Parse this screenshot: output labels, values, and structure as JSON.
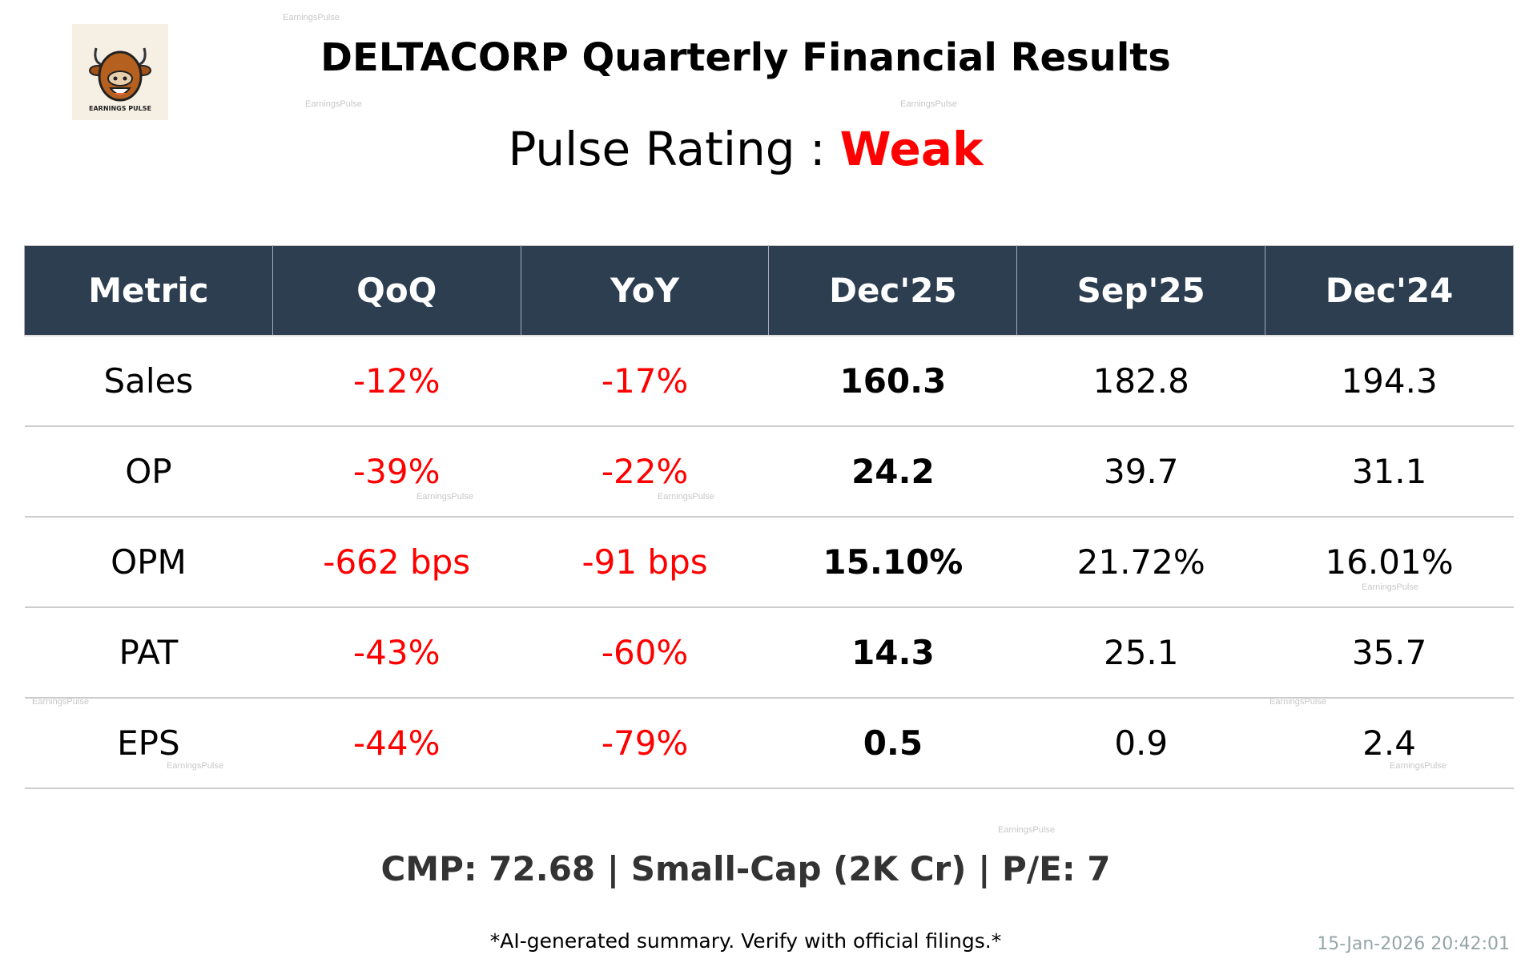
{
  "logo": {
    "text": "EARNINGS PULSE"
  },
  "title": "DELTACORP Quarterly Financial Results",
  "pulse_rating": {
    "label": "Pulse Rating :",
    "value": "Weak",
    "value_color": "#ff0000"
  },
  "table": {
    "headers": [
      "Metric",
      "QoQ",
      "YoY",
      "Dec'25",
      "Sep'25",
      "Dec'24"
    ],
    "rows": [
      [
        "Sales",
        "-12%",
        "-17%",
        "160.3",
        "182.8",
        "194.3"
      ],
      [
        "OP",
        "-39%",
        "-22%",
        "24.2",
        "39.7",
        "31.1"
      ],
      [
        "OPM",
        "-662 bps",
        "-91 bps",
        "15.10%",
        "21.72%",
        "16.01%"
      ],
      [
        "PAT",
        "-43%",
        "-60%",
        "14.3",
        "25.1",
        "35.7"
      ],
      [
        "EPS",
        "-44%",
        "-79%",
        "0.5",
        "0.9",
        "2.4"
      ]
    ],
    "header_color": "#2c3e50",
    "negative_color": "#ff0000"
  },
  "footer": {
    "summary": "CMP: 72.68 | Small-Cap (2K Cr) | P/E: 7",
    "disclaimer": "*AI-generated summary. Verify with official filings.*",
    "timestamp": "15-Jan-2026 20:42:01"
  },
  "watermark": "EarningsPulse"
}
